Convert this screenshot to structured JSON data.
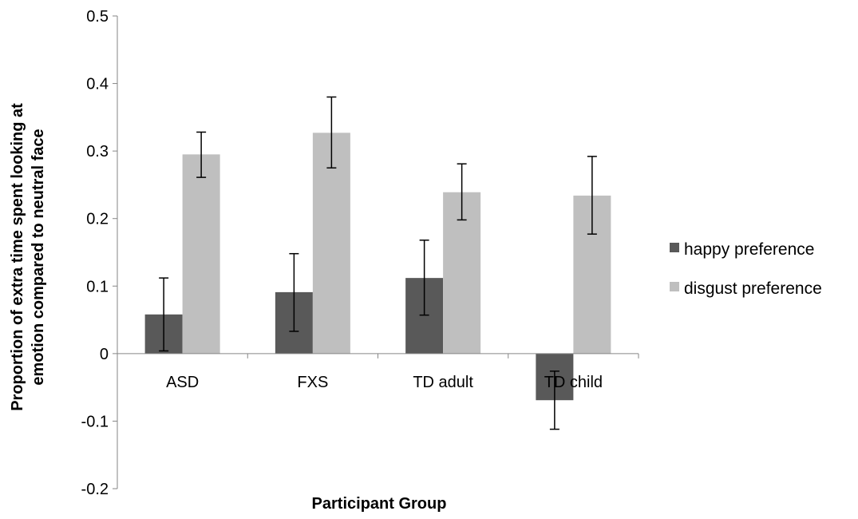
{
  "chart_data": {
    "type": "bar",
    "title": "",
    "xlabel": "Participant Group",
    "ylabel_lines": [
      "Proportion of extra time spent looking at",
      "emotion compared to neutral face"
    ],
    "categories": [
      "ASD",
      "FXS",
      "TD adult",
      "TD child"
    ],
    "ylim": [
      -0.2,
      0.5
    ],
    "yticks": [
      -0.2,
      -0.1,
      0,
      0.1,
      0.2,
      0.3,
      0.4,
      0.5
    ],
    "ytick_labels": [
      "-0.2",
      "-0.1",
      "0",
      "0.1",
      "0.2",
      "0.3",
      "0.4",
      "0.5"
    ],
    "grid": false,
    "legend_position": "right",
    "series": [
      {
        "name": "happy preference",
        "color": "#595959",
        "values": [
          0.058,
          0.091,
          0.112,
          -0.069
        ],
        "error_low": [
          0.004,
          0.033,
          0.057,
          -0.112
        ],
        "error_high": [
          0.112,
          0.148,
          0.168,
          -0.026
        ]
      },
      {
        "name": "disgust preference",
        "color": "#bfbfbf",
        "values": [
          0.295,
          0.327,
          0.239,
          0.234
        ],
        "error_low": [
          0.261,
          0.275,
          0.198,
          0.177
        ],
        "error_high": [
          0.328,
          0.38,
          0.281,
          0.292
        ]
      }
    ]
  }
}
